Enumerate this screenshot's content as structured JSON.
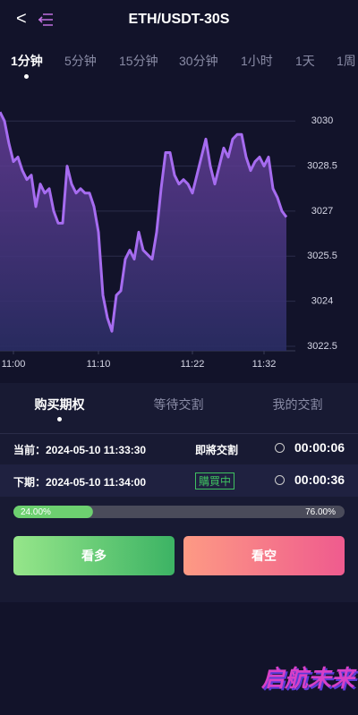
{
  "header": {
    "title": "ETH/USDT-30S"
  },
  "periods": {
    "items": [
      "1分钟",
      "5分钟",
      "15分钟",
      "30分钟",
      "1小时",
      "1天",
      "1周"
    ],
    "active": 0
  },
  "chart": {
    "type": "line",
    "color": "#a66cf0",
    "categories": [
      null,
      null,
      null,
      "11:00",
      null,
      null,
      null,
      null,
      null,
      null,
      null,
      null,
      null,
      null,
      null,
      null,
      null,
      null,
      null,
      null,
      null,
      null,
      "11:10",
      null,
      null,
      null,
      null,
      null,
      null,
      null,
      null,
      null,
      null,
      null,
      null,
      null,
      null,
      null,
      null,
      null,
      null,
      null,
      null,
      "11:22",
      null,
      null,
      null,
      null,
      null,
      null,
      null,
      null,
      null,
      null,
      null,
      null,
      null,
      null,
      null,
      "11:32",
      null,
      null,
      null,
      null,
      null
    ],
    "values": [
      3030.3,
      3030,
      3029.25,
      3028.65,
      3028.8,
      3028.35,
      3028.05,
      3028.2,
      3027.15,
      3027.9,
      3027.6,
      3027.75,
      3027,
      3026.6,
      3026.6,
      3028.5,
      3027.9,
      3027.6,
      3027.75,
      3027.6,
      3027.6,
      3027.15,
      3026.3,
      3024.2,
      3023.45,
      3023,
      3024.2,
      3024.35,
      3025.4,
      3025.7,
      3025.4,
      3026.3,
      3025.7,
      3025.55,
      3025.4,
      3026.3,
      3027.75,
      3028.95,
      3028.95,
      3028.2,
      3027.9,
      3028.05,
      3027.9,
      3027.6,
      3028.2,
      3028.8,
      3029.4,
      3028.5,
      3027.9,
      3028.5,
      3029.1,
      3028.8,
      3029.4,
      3029.55,
      3029.55,
      3028.8,
      3028.35,
      3028.65,
      3028.8,
      3028.5,
      3028.8,
      3027.75,
      3027.45,
      3027,
      3026.8
    ],
    "ylim": [
      3022.35,
      3031.05
    ],
    "yticks": [
      3022.5,
      3024,
      3025.5,
      3027,
      3028.5,
      3030
    ],
    "grid": true
  },
  "tabs": {
    "items": [
      "购买期权",
      "等待交割",
      "我的交割"
    ],
    "active": 0
  },
  "rounds": [
    {
      "time": "当前：2024-05-10 11:33:30",
      "status": "即將交割",
      "countdown": "00:00:06"
    },
    {
      "time": "下期：2024-05-10 11:34:00",
      "status": "購買中",
      "countdown": "00:00:36"
    }
  ],
  "progress": {
    "values": [
      24,
      76
    ],
    "labels": [
      "24.00%",
      "76.00%"
    ]
  },
  "buttons": [
    "看多",
    "看空"
  ],
  "logo": {
    "title": "启航未来"
  }
}
